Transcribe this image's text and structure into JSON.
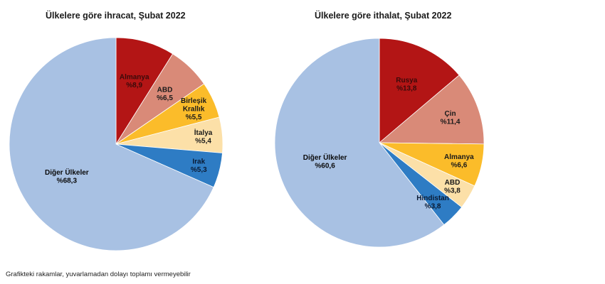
{
  "footnote": "Grafikteki rakamlar, yuvarlamadan dolayı toplamı vermeyebilir",
  "chart_data": [
    {
      "type": "pie",
      "title": "Ülkelere göre ihracat, Şubat 2022",
      "start_angle": "12 o'clock",
      "direction": "clockwise",
      "slices": [
        {
          "label": [
            "Almanya"
          ],
          "value": 8.9,
          "display": "%8,9",
          "color": "#B31515",
          "text_color": "#3a0a0a"
        },
        {
          "label": [
            "ABD"
          ],
          "value": 6.5,
          "display": "%6,5",
          "color": "#D98A78",
          "text_color": "#1a1a1a"
        },
        {
          "label": [
            "Birleşik",
            "Krallık"
          ],
          "value": 5.5,
          "display": "%5,5",
          "color": "#FBBC2A",
          "text_color": "#1a1a1a"
        },
        {
          "label": [
            "İtalya"
          ],
          "value": 5.4,
          "display": "%5,4",
          "color": "#FCE0A8",
          "text_color": "#1a1a1a"
        },
        {
          "label": [
            "Irak"
          ],
          "value": 5.3,
          "display": "%5,3",
          "color": "#2E7CC4",
          "text_color": "#0a1a33"
        },
        {
          "label": [
            "Diğer Ülkeler"
          ],
          "value": 68.3,
          "display": "%68,3",
          "color": "#A8C1E3",
          "text_color": "#0a0a0a"
        }
      ]
    },
    {
      "type": "pie",
      "title": "Ülkelere göre ithalat, Şubat 2022",
      "start_angle": "12 o'clock",
      "direction": "clockwise",
      "slices": [
        {
          "label": [
            "Rusya"
          ],
          "value": 13.8,
          "display": "%13,8",
          "color": "#B31515",
          "text_color": "#3a0a0a"
        },
        {
          "label": [
            "Çin"
          ],
          "value": 11.4,
          "display": "%11,4",
          "color": "#D98A78",
          "text_color": "#1a1a1a"
        },
        {
          "label": [
            "Almanya"
          ],
          "value": 6.6,
          "display": "%6,6",
          "color": "#FBBC2A",
          "text_color": "#1a1a1a"
        },
        {
          "label": [
            "ABD"
          ],
          "value": 3.8,
          "display": "%3,8",
          "color": "#FCE0A8",
          "text_color": "#1a1a1a"
        },
        {
          "label": [
            "Hindistan"
          ],
          "value": 3.8,
          "display": "%3,8",
          "color": "#2E7CC4",
          "text_color": "#0a1a33"
        },
        {
          "label": [
            "Diğer Ülkeler"
          ],
          "value": 60.6,
          "display": "%60,6",
          "color": "#A8C1E3",
          "text_color": "#0a0a0a"
        }
      ]
    }
  ]
}
